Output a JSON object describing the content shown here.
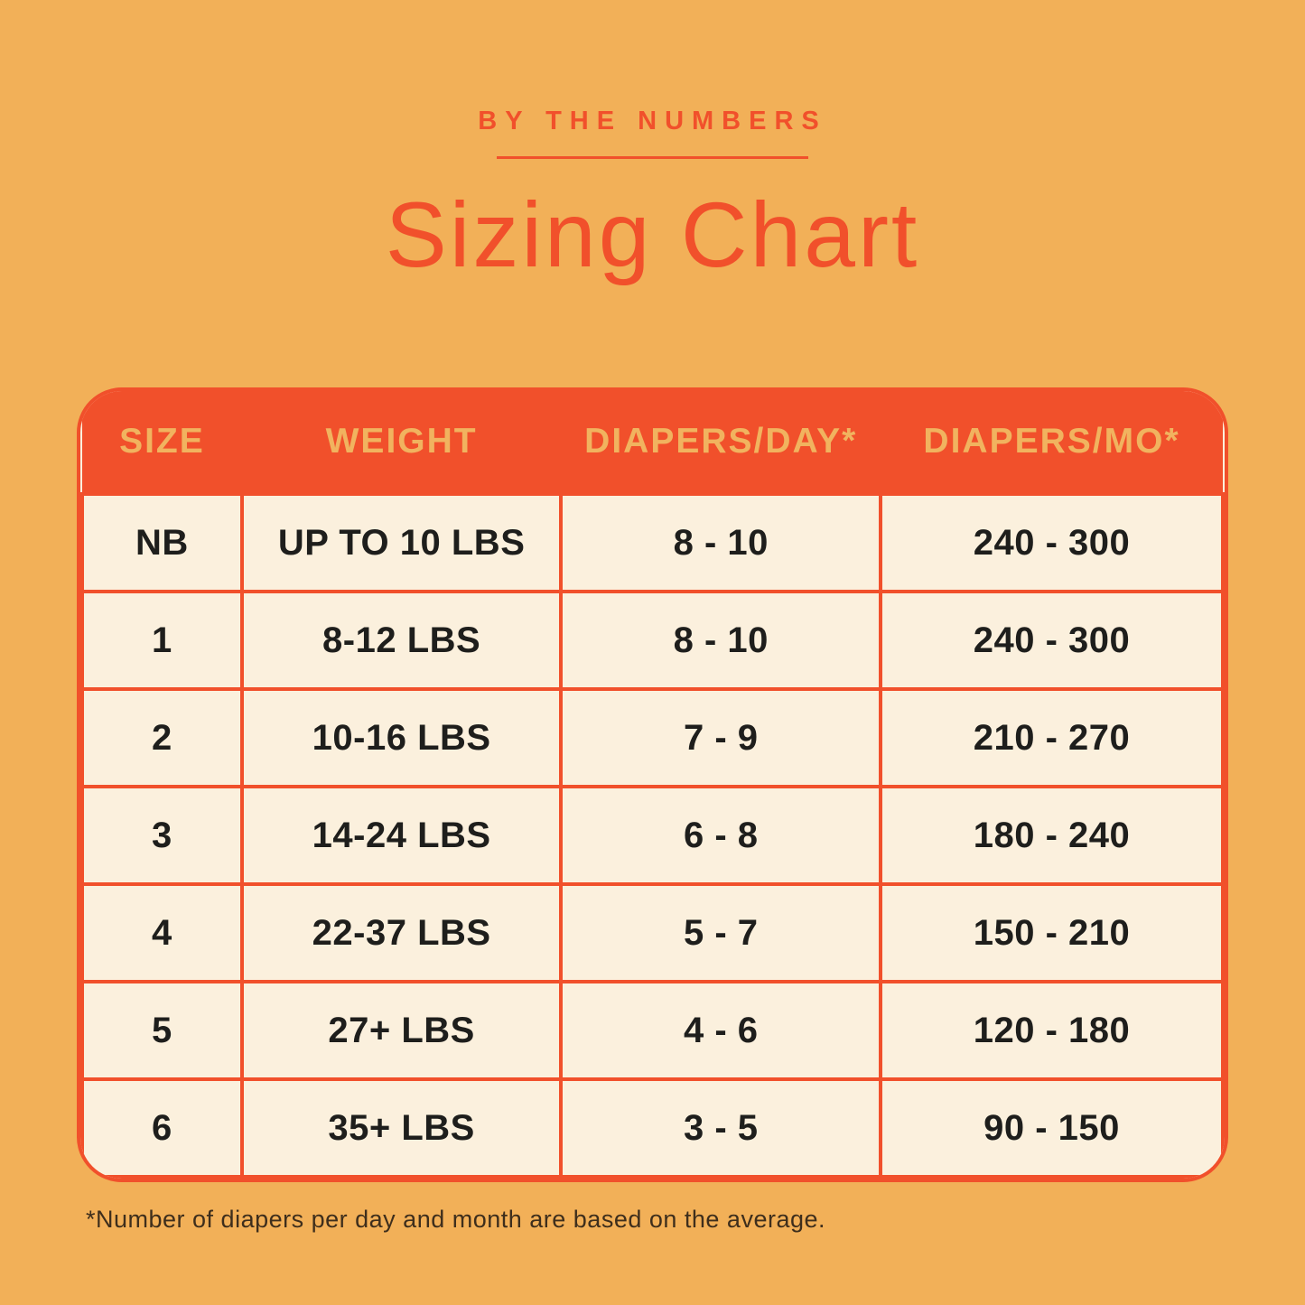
{
  "page": {
    "background_color": "#F2B058",
    "accent_color": "#F1502B",
    "cream_color": "#FBF0DD",
    "header_text_color": "#F1B35F",
    "eyebrow": "BY THE NUMBERS",
    "title": "Sizing Chart",
    "footnote": "*Number of diapers per day and month are based on the average."
  },
  "chart_data": {
    "type": "table",
    "title": "Sizing Chart",
    "subtitle": "BY THE NUMBERS",
    "columns": [
      "SIZE",
      "WEIGHT",
      "DIAPERS/DAY*",
      "DIAPERS/MO*"
    ],
    "rows": [
      [
        "NB",
        "UP TO 10 LBS",
        "8 - 10",
        "240 - 300"
      ],
      [
        "1",
        "8-12 LBS",
        "8 - 10",
        "240 - 300"
      ],
      [
        "2",
        "10-16 LBS",
        "7 - 9",
        "210 - 270"
      ],
      [
        "3",
        "14-24 LBS",
        "6 - 8",
        "180 - 240"
      ],
      [
        "4",
        "22-37 LBS",
        "5 - 7",
        "150 - 210"
      ],
      [
        "5",
        "27+ LBS",
        "4 - 6",
        "120 - 180"
      ],
      [
        "6",
        "35+ LBS",
        "3 - 5",
        "90 - 150"
      ]
    ],
    "footnote": "*Number of diapers per day and month are based on the average.",
    "layout": {
      "grid": true,
      "header_position": "top"
    }
  }
}
